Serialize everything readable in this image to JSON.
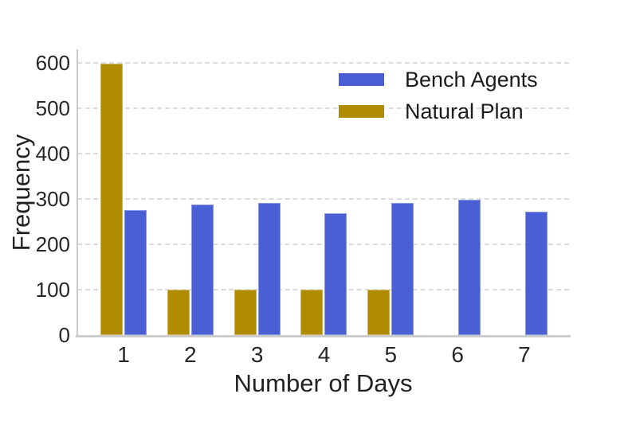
{
  "chart_data": {
    "type": "bar",
    "title": "",
    "xlabel": "Number of Days",
    "ylabel": "Frequency",
    "categories": [
      "1",
      "2",
      "3",
      "4",
      "5",
      "6",
      "7"
    ],
    "series": [
      {
        "name": "Bench Agents",
        "color": "#4a5fd3",
        "values": [
          276,
          287,
          292,
          269,
          292,
          298,
          272
        ]
      },
      {
        "name": "Natural Plan",
        "color": "#b08d00",
        "values": [
          598,
          100,
          100,
          100,
          100,
          0,
          0
        ]
      }
    ],
    "bar_order_left_to_right": [
      "Natural Plan",
      "Bench Agents"
    ],
    "ylim": [
      0,
      600
    ],
    "yticks": [
      0,
      100,
      200,
      300,
      400,
      500,
      600
    ],
    "grid": "horizontal-dashed",
    "grid_color": "#dcdcdc",
    "legend_position": "upper-right-inside",
    "legend": [
      "Bench Agents",
      "Natural Plan"
    ]
  }
}
